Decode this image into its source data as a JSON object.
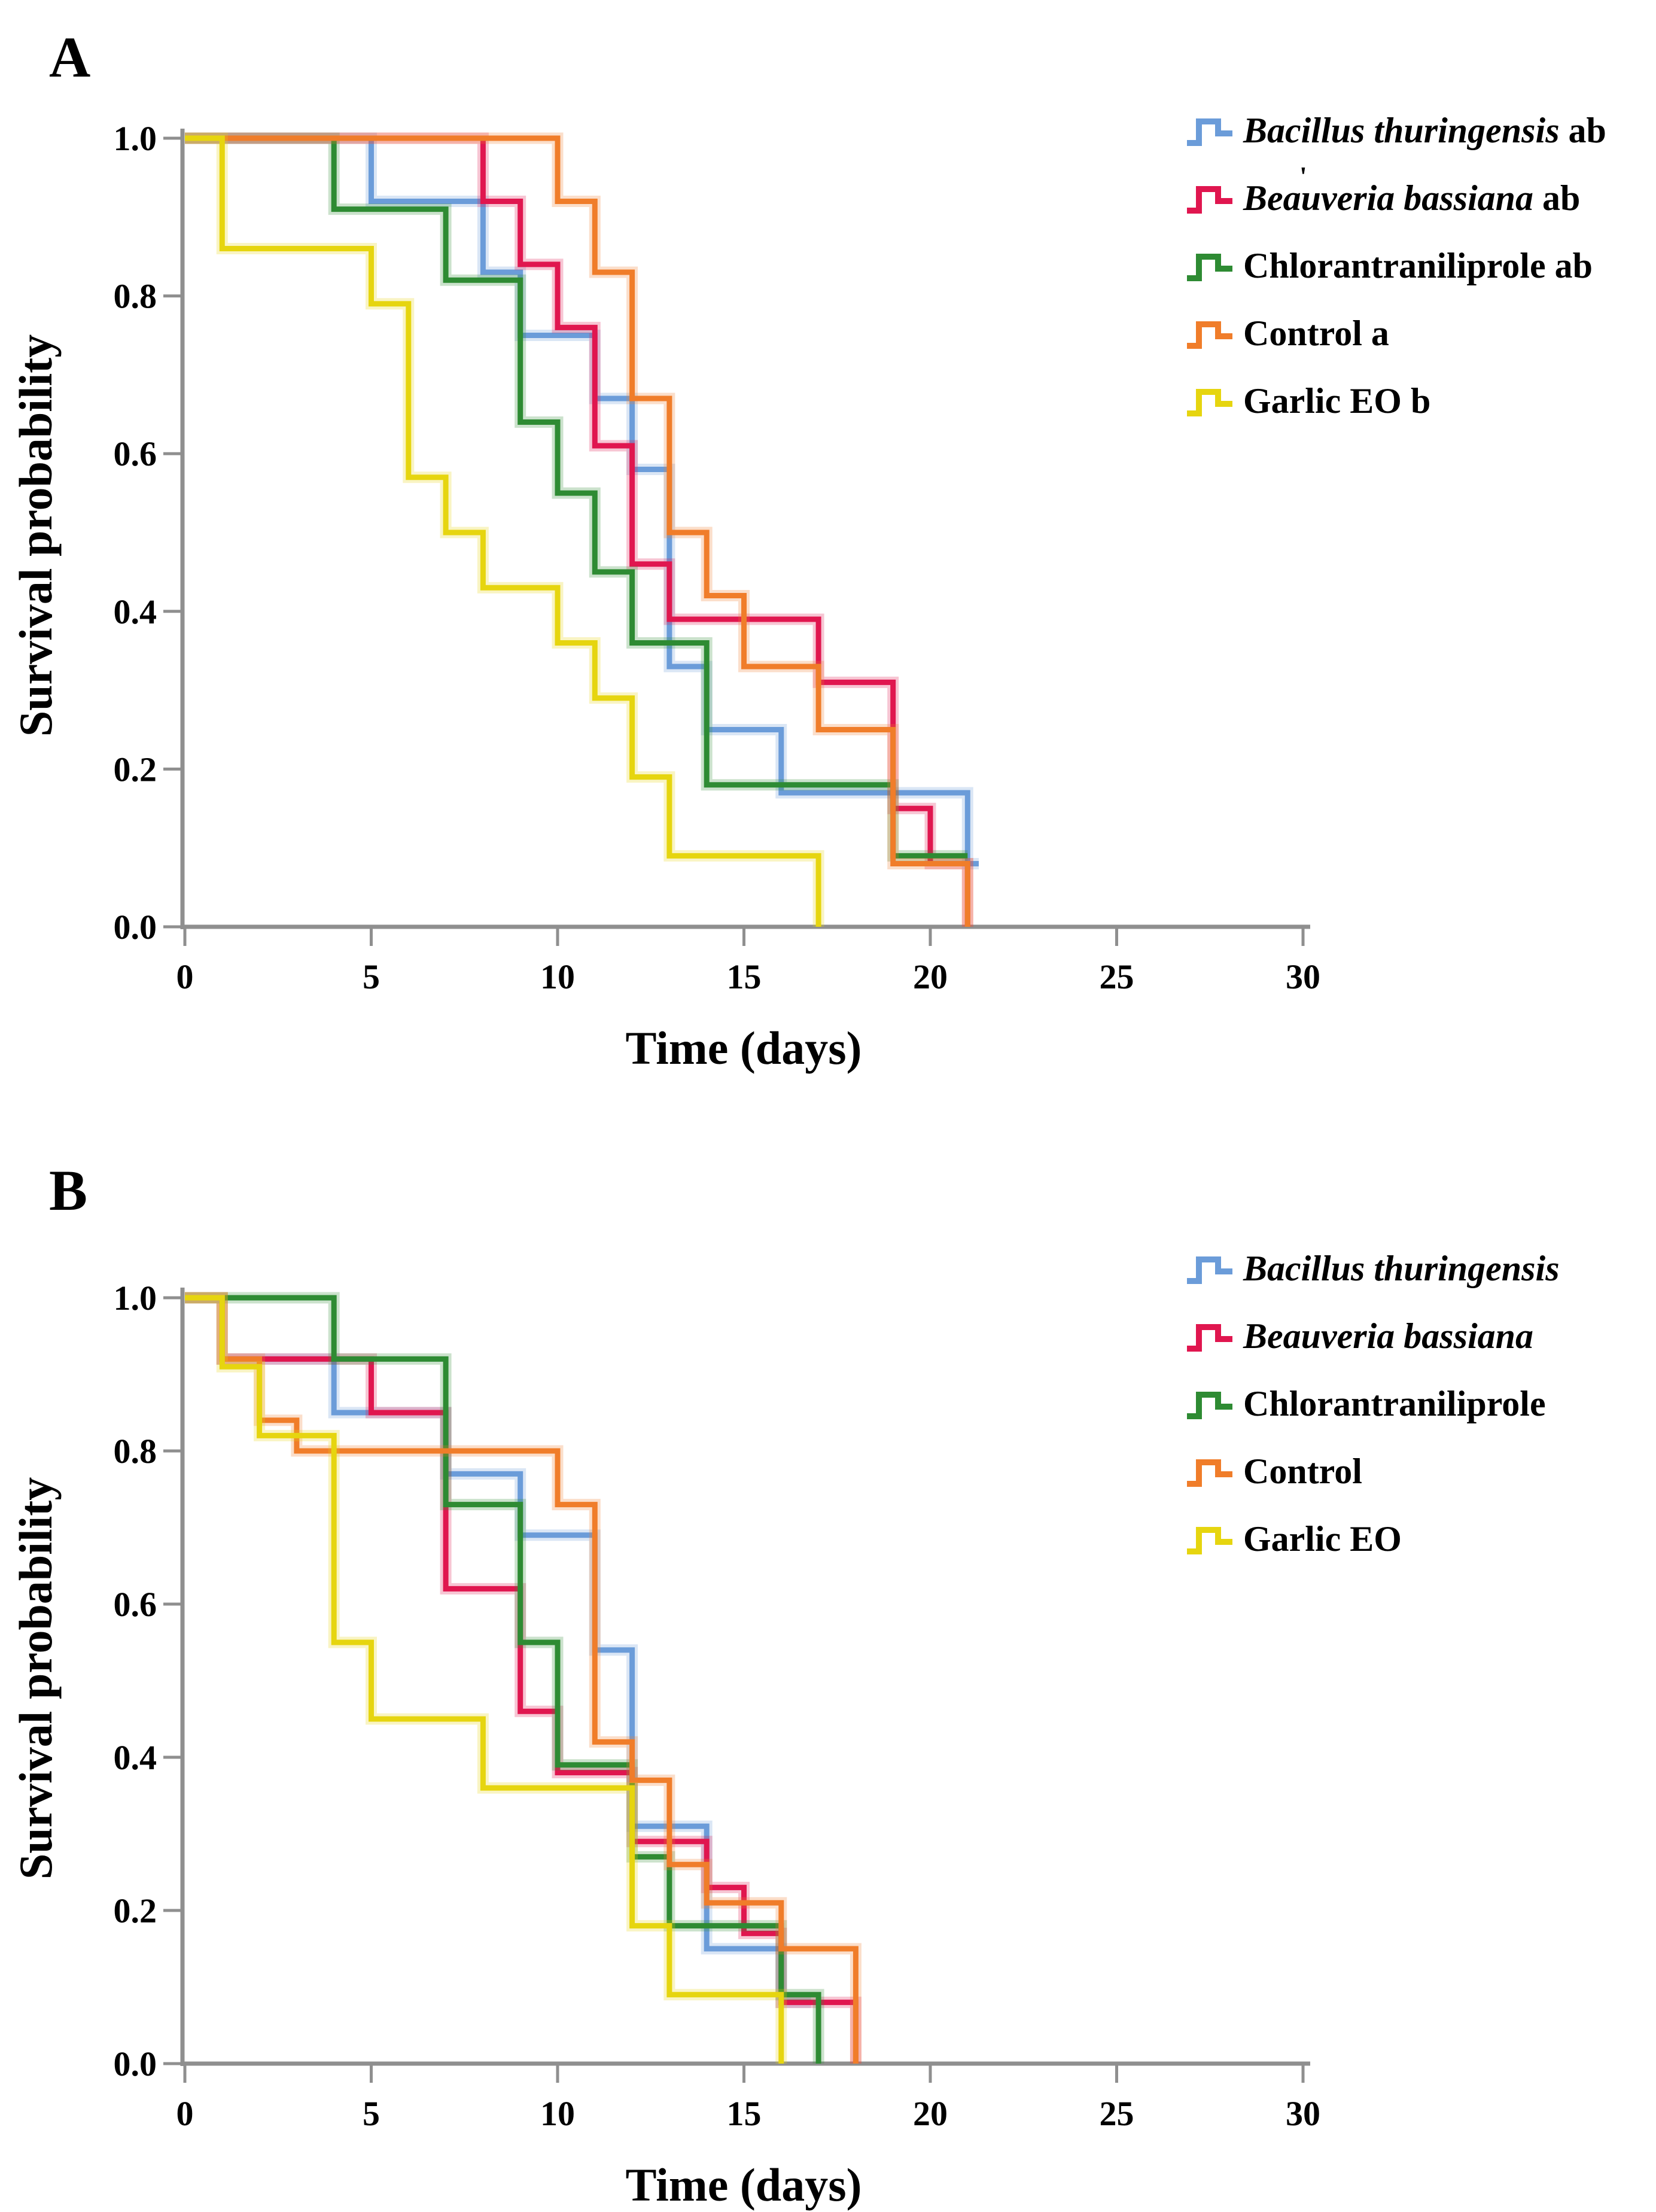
{
  "figure": {
    "kind": "Kaplan-Meier survival curves, two panels",
    "stray_mark": "'"
  },
  "chart_data": [
    {
      "type": "line",
      "variant": "step-survival",
      "panel_label": "A",
      "xlabel": "Time (days)",
      "ylabel": "Survival probability",
      "xlim": [
        0,
        30
      ],
      "ylim": [
        0.0,
        1.0
      ],
      "xticks": [
        0,
        5,
        10,
        15,
        20,
        25,
        30
      ],
      "yticks": [
        1.0,
        0.8,
        0.6,
        0.4,
        0.2,
        0.0
      ],
      "ytick_labels": [
        "1.0",
        "0.8",
        "0.6",
        "0.4",
        "0.2",
        "0.0"
      ],
      "grid": false,
      "legend_position": "outside-upper-right",
      "series": [
        {
          "label": "Bacillus thuringensis",
          "legend_suffix": "ab",
          "italic_label": true,
          "color": "#6b9cd9",
          "points": [
            [
              0,
              1.0
            ],
            [
              5,
              0.92
            ],
            [
              8,
              0.83
            ],
            [
              9,
              0.75
            ],
            [
              11,
              0.67
            ],
            [
              12,
              0.58
            ],
            [
              13,
              0.33
            ],
            [
              14,
              0.25
            ],
            [
              16,
              0.17
            ],
            [
              21,
              0.08
            ]
          ],
          "end_day": 21.3
        },
        {
          "label": "Beauveria bassiana",
          "legend_suffix": "ab",
          "italic_label": true,
          "color": "#e0164f",
          "points": [
            [
              0,
              1.0
            ],
            [
              8,
              0.92
            ],
            [
              9,
              0.84
            ],
            [
              10,
              0.76
            ],
            [
              11,
              0.61
            ],
            [
              12,
              0.46
            ],
            [
              13,
              0.39
            ],
            [
              17,
              0.31
            ],
            [
              19,
              0.15
            ],
            [
              20,
              0.08
            ],
            [
              21,
              0.0
            ]
          ],
          "end_day": 21
        },
        {
          "label": "Chlorantraniliprole",
          "legend_suffix": "ab",
          "italic_label": false,
          "color": "#2e8b33",
          "points": [
            [
              0,
              1.0
            ],
            [
              4,
              0.91
            ],
            [
              7,
              0.82
            ],
            [
              9,
              0.64
            ],
            [
              10,
              0.55
            ],
            [
              11,
              0.45
            ],
            [
              12,
              0.36
            ],
            [
              14,
              0.18
            ],
            [
              19,
              0.09
            ]
          ],
          "end_day": 21
        },
        {
          "label": "Control",
          "legend_suffix": "a",
          "italic_label": false,
          "color": "#f07d2a",
          "points": [
            [
              0,
              1.0
            ],
            [
              10,
              0.92
            ],
            [
              11,
              0.83
            ],
            [
              12,
              0.67
            ],
            [
              13,
              0.5
            ],
            [
              14,
              0.42
            ],
            [
              15,
              0.33
            ],
            [
              17,
              0.25
            ],
            [
              19,
              0.08
            ],
            [
              21,
              0.0
            ]
          ],
          "end_day": 21
        },
        {
          "label": "Garlic EO",
          "legend_suffix": "b",
          "italic_label": false,
          "color": "#e6d50f",
          "points": [
            [
              0,
              1.0
            ],
            [
              1,
              0.86
            ],
            [
              5,
              0.79
            ],
            [
              6,
              0.57
            ],
            [
              7,
              0.5
            ],
            [
              8,
              0.43
            ],
            [
              10,
              0.36
            ],
            [
              11,
              0.29
            ],
            [
              12,
              0.19
            ],
            [
              13,
              0.09
            ],
            [
              17,
              0.0
            ]
          ],
          "end_day": 17
        }
      ]
    },
    {
      "type": "line",
      "variant": "step-survival",
      "panel_label": "B",
      "xlabel": "Time (days)",
      "ylabel": "Survival probability",
      "xlim": [
        0,
        30
      ],
      "ylim": [
        0.0,
        1.0
      ],
      "xticks": [
        0,
        5,
        10,
        15,
        20,
        25,
        30
      ],
      "yticks": [
        1.0,
        0.8,
        0.6,
        0.4,
        0.2,
        0.0
      ],
      "ytick_labels": [
        "1.0",
        "0.8",
        "0.6",
        "0.4",
        "0.2",
        "0.0"
      ],
      "grid": false,
      "legend_position": "outside-upper-right",
      "series": [
        {
          "label": "Bacillus thuringensis",
          "legend_suffix": "",
          "italic_label": true,
          "color": "#6b9cd9",
          "points": [
            [
              0,
              1.0
            ],
            [
              1,
              0.92
            ],
            [
              4,
              0.85
            ],
            [
              7,
              0.77
            ],
            [
              9,
              0.69
            ],
            [
              11,
              0.54
            ],
            [
              12,
              0.31
            ],
            [
              14,
              0.15
            ],
            [
              16,
              0.08
            ]
          ],
          "end_day": 16.8
        },
        {
          "label": "Beauveria bassiana",
          "legend_suffix": "",
          "italic_label": true,
          "color": "#e0164f",
          "points": [
            [
              0,
              1.0
            ],
            [
              1,
              0.92
            ],
            [
              5,
              0.85
            ],
            [
              7,
              0.62
            ],
            [
              9,
              0.46
            ],
            [
              10,
              0.38
            ],
            [
              12,
              0.29
            ],
            [
              14,
              0.23
            ],
            [
              15,
              0.17
            ],
            [
              16,
              0.08
            ],
            [
              18,
              0.0
            ]
          ],
          "end_day": 18
        },
        {
          "label": "Chlorantraniliprole",
          "legend_suffix": "",
          "italic_label": false,
          "color": "#2e8b33",
          "points": [
            [
              0,
              1.0
            ],
            [
              4,
              0.92
            ],
            [
              7,
              0.73
            ],
            [
              9,
              0.55
            ],
            [
              10,
              0.39
            ],
            [
              12,
              0.27
            ],
            [
              13,
              0.18
            ],
            [
              16,
              0.09
            ],
            [
              17,
              0.0
            ]
          ],
          "end_day": 17
        },
        {
          "label": "Control",
          "legend_suffix": "",
          "italic_label": false,
          "color": "#f07d2a",
          "points": [
            [
              0,
              1.0
            ],
            [
              1,
              0.92
            ],
            [
              2,
              0.84
            ],
            [
              3,
              0.8
            ],
            [
              10,
              0.73
            ],
            [
              11,
              0.42
            ],
            [
              12,
              0.37
            ],
            [
              13,
              0.26
            ],
            [
              14,
              0.21
            ],
            [
              16,
              0.15
            ],
            [
              18,
              0.0
            ]
          ],
          "end_day": 18
        },
        {
          "label": "Garlic EO",
          "legend_suffix": "",
          "italic_label": false,
          "color": "#e6d50f",
          "points": [
            [
              0,
              1.0
            ],
            [
              1,
              0.91
            ],
            [
              2,
              0.82
            ],
            [
              4,
              0.55
            ],
            [
              5,
              0.45
            ],
            [
              8,
              0.36
            ],
            [
              12,
              0.18
            ],
            [
              13,
              0.09
            ],
            [
              16,
              0.0
            ]
          ],
          "end_day": 16
        }
      ]
    }
  ]
}
